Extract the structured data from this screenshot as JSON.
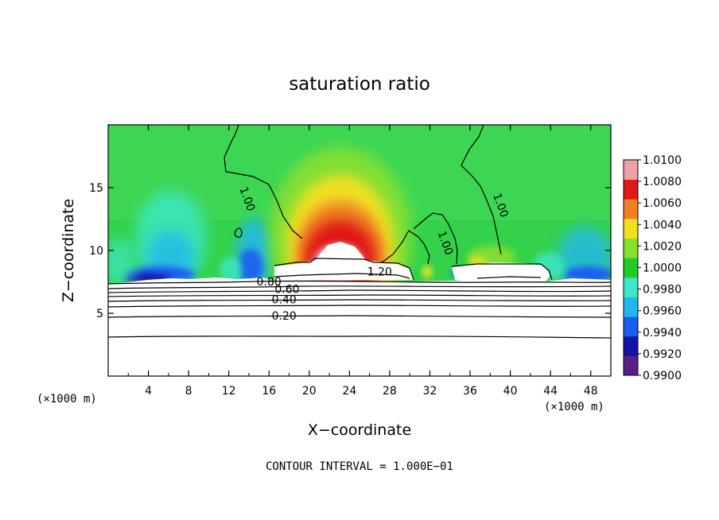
{
  "chart_data": {
    "type": "heatmap",
    "title": "saturation ratio",
    "xlabel": "X−coordinate",
    "ylabel": "Z−coordinate",
    "x_unit_left": "(×1000 m)",
    "x_unit_right": "(×1000 m)",
    "footer": "CONTOUR INTERVAL = 1.000E−01",
    "xlim": [
      0,
      50
    ],
    "ylim": [
      0,
      20
    ],
    "x_ticks": [
      4,
      8,
      12,
      16,
      20,
      24,
      28,
      32,
      36,
      40,
      44,
      48
    ],
    "y_ticks": [
      5,
      10,
      15
    ],
    "colorbar": {
      "levels": [
        "0.9900",
        "0.9920",
        "0.9940",
        "0.9960",
        "0.9980",
        "1.0000",
        "1.0020",
        "1.0040",
        "1.0060",
        "1.0080",
        "1.0100"
      ],
      "colors": [
        "#5a1f8a",
        "#1414a8",
        "#1a5ef0",
        "#22b8ee",
        "#3ee8c8",
        "#22cc22",
        "#88e030",
        "#f0e020",
        "#f08020",
        "#e01818",
        "#f0a0a8"
      ]
    },
    "contour_labels": [
      {
        "text": "1.00",
        "x": 13.5,
        "y": 14.0
      },
      {
        "text": "1.00",
        "x": 33.2,
        "y": 10.5
      },
      {
        "text": "1.00",
        "x": 38.7,
        "y": 13.5
      },
      {
        "text": "1.20",
        "x": 27.0,
        "y": 8.0
      },
      {
        "text": "0.80",
        "x": 16.0,
        "y": 7.2
      },
      {
        "text": "0.60",
        "x": 17.8,
        "y": 6.6
      },
      {
        "text": "0.40",
        "x": 17.5,
        "y": 5.8
      },
      {
        "text": "0.20",
        "x": 17.5,
        "y": 4.5
      }
    ]
  }
}
